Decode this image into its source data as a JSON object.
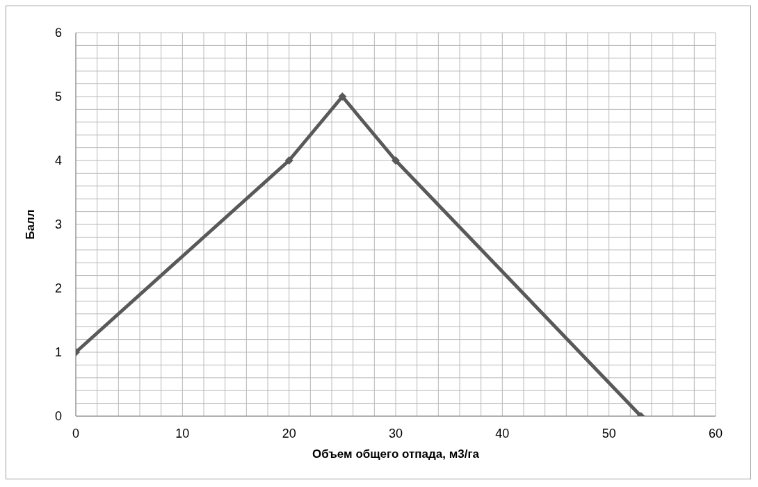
{
  "chart_data": {
    "type": "line",
    "xlabel": "Объем общего отпада, м3/га",
    "ylabel": "Балл",
    "x": [
      0,
      20,
      25,
      30,
      53
    ],
    "series": [
      {
        "color": "#595959",
        "values": [
          1,
          4,
          5,
          4,
          0
        ]
      }
    ],
    "xlim": [
      0,
      60
    ],
    "xticks": [
      0,
      {
        "value": 2,
        "label": null
      },
      {
        "value": 4,
        "label": null
      },
      {
        "value": 6,
        "label": null
      },
      {
        "value": 8,
        "label": null
      },
      10,
      {
        "value": 12,
        "label": null
      },
      {
        "value": 14,
        "label": null
      },
      {
        "value": 16,
        "label": null
      },
      {
        "value": 18,
        "label": null
      },
      20,
      {
        "value": 22,
        "label": null
      },
      {
        "value": 24,
        "label": null
      },
      {
        "value": 26,
        "label": null
      },
      {
        "value": 28,
        "label": null
      },
      30,
      {
        "value": 32,
        "label": null
      },
      {
        "value": 34,
        "label": null
      },
      {
        "value": 36,
        "label": null
      },
      {
        "value": 38,
        "label": null
      },
      40,
      {
        "value": 42,
        "label": null
      },
      {
        "value": 44,
        "label": null
      },
      {
        "value": 46,
        "label": null
      },
      {
        "value": 48,
        "label": null
      },
      50,
      {
        "value": 52,
        "label": null
      },
      {
        "value": 54,
        "label": null
      },
      {
        "value": 56,
        "label": null
      },
      {
        "value": 58,
        "label": null
      },
      60
    ],
    "ylim": [
      0,
      6
    ],
    "yticks": [
      0,
      {
        "value": 0.2,
        "label": null
      },
      {
        "value": 0.4,
        "label": null
      },
      {
        "value": 0.6,
        "label": null
      },
      {
        "value": 0.8,
        "label": null
      },
      1,
      {
        "value": 1.2,
        "label": null
      },
      {
        "value": 1.4,
        "label": null
      },
      {
        "value": 1.6,
        "label": null
      },
      {
        "value": 1.8,
        "label": null
      },
      2,
      {
        "value": 2.2,
        "label": null
      },
      {
        "value": 2.4,
        "label": null
      },
      {
        "value": 2.6,
        "label": null
      },
      {
        "value": 2.8,
        "label": null
      },
      3,
      {
        "value": 3.2,
        "label": null
      },
      {
        "value": 3.4,
        "label": null
      },
      {
        "value": 3.6,
        "label": null
      },
      {
        "value": 3.8,
        "label": null
      },
      4,
      {
        "value": 4.2,
        "label": null
      },
      {
        "value": 4.4,
        "label": null
      },
      {
        "value": 4.6,
        "label": null
      },
      {
        "value": 4.8,
        "label": null
      },
      5,
      {
        "value": 5.2,
        "label": null
      },
      {
        "value": 5.4,
        "label": null
      },
      {
        "value": 5.6,
        "label": null
      },
      {
        "value": 5.8,
        "label": null
      },
      6
    ],
    "grid": true,
    "marker": "diamond",
    "line_style": "solid"
  }
}
